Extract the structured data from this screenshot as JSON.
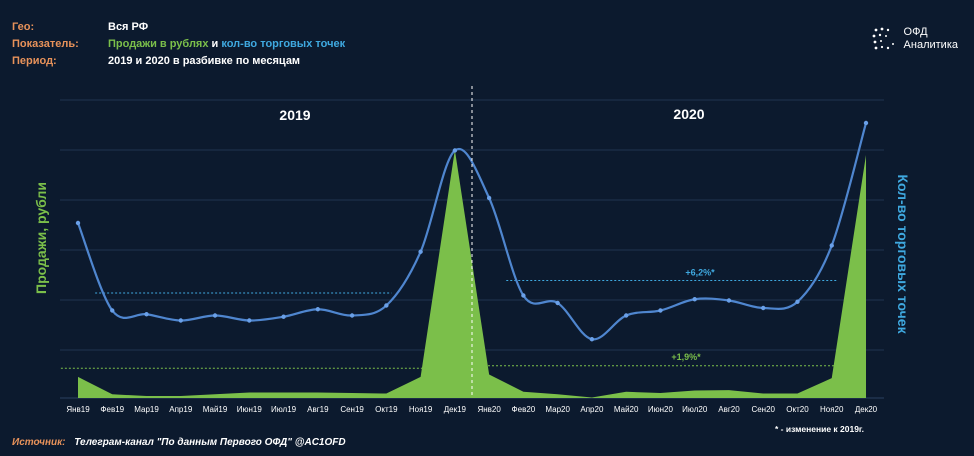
{
  "meta": {
    "geo_label": "Гео:",
    "geo_value": "Вся РФ",
    "indicator_label": "Показатель:",
    "indicator_sales": "Продажи в рублях",
    "indicator_and": " и ",
    "indicator_points": "кол-во торговых точек",
    "period_label": "Период:",
    "period_value": "2019 и 2020 в разбивке по месяцам"
  },
  "logo": {
    "line1": "ОФД",
    "line2": "Аналитика"
  },
  "footer": {
    "source_label": "Источник:",
    "source_value": "Телеграм-канал \"По данным Первого ОФД\" @AC1OFD",
    "footnote": "* - изменение к 2019г."
  },
  "colors": {
    "sales": "#7bbf4a",
    "points": "#4f86cf",
    "background": "#0c1a2e",
    "accent": "#e8925a"
  },
  "chart_data": {
    "type": "area+line",
    "categories": [
      "Янв19",
      "Фев19",
      "Мар19",
      "Апр19",
      "Май19",
      "Июн19",
      "Июл19",
      "Авг19",
      "Сен19",
      "Окт19",
      "Ноя19",
      "Дек19",
      "Янв20",
      "Фев20",
      "Мар20",
      "Апр20",
      "Май20",
      "Июн20",
      "Июл20",
      "Авг20",
      "Сен20",
      "Окт20",
      "Ноя20",
      "Дек20"
    ],
    "series": [
      {
        "name": "Продажи в рублях",
        "kind": "area",
        "values": [
          8.5,
          1.5,
          0.8,
          0.8,
          1.5,
          2.2,
          2.2,
          2.2,
          2.0,
          1.8,
          8.5,
          100,
          9.5,
          2.5,
          1.5,
          0.2,
          2.5,
          2.0,
          3.0,
          3.2,
          1.8,
          1.8,
          8.0,
          98
        ]
      },
      {
        "name": "кол-во торговых точек",
        "kind": "line",
        "values": [
          70,
          35,
          33.5,
          31,
          33,
          31,
          32.5,
          35.5,
          33,
          37,
          58.5,
          99,
          80,
          41,
          38,
          23.5,
          33,
          35,
          39.5,
          39,
          36,
          38.5,
          61,
          110
        ]
      }
    ],
    "ylabel_left": "Продажи, рубли",
    "ylabel_right": "Кол-во торговых точек",
    "year_labels": [
      "2019",
      "2020"
    ],
    "divider_between": [
      "Дек19",
      "Янв20"
    ],
    "reference_lines": [
      {
        "series": "кол-во торговых точек",
        "value": 42,
        "from": "Фев19",
        "to": "Окт19"
      },
      {
        "series": "кол-во торговых точек",
        "value": 47,
        "from": "Фев20",
        "to": "Ноя20",
        "label": "+6,2%*"
      },
      {
        "series": "Продажи в рублях",
        "value": 12,
        "from": "Янв19",
        "to": "Ноя19"
      },
      {
        "series": "Продажи в рублях",
        "value": 13,
        "from": "Янв20",
        "to": "Ноя20",
        "label": "+1,9%*"
      }
    ],
    "grid": true
  }
}
